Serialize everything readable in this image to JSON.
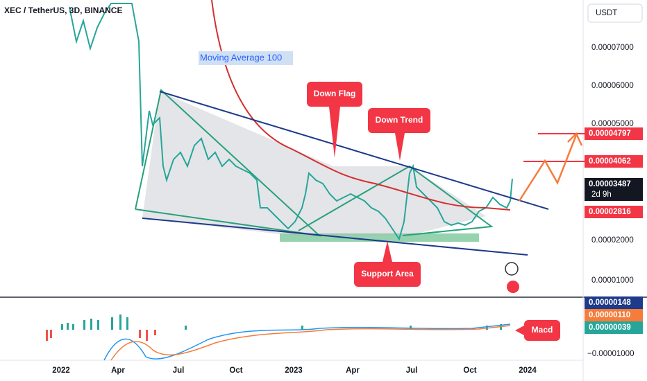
{
  "header": {
    "symbol": "XEC / TetherUS, 3D, BINANCE",
    "currency": "USDT"
  },
  "annotations": {
    "moving_average": "Moving Average 100",
    "down_flag": "Down Flag",
    "down_trend": "Down Trend",
    "support_area": "Support Area",
    "macd": "Macd"
  },
  "price_axis": [
    "0.00007000",
    "0.00006000",
    "0.00005000",
    "0.00002000",
    "0.00001000"
  ],
  "price_tags": [
    "0.00004797",
    "0.00004062",
    "0.00003487",
    "2d 9h",
    "0.00002816"
  ],
  "macd_axis": [
    "0.00000148",
    "0.00000110",
    "0.00000039",
    "−0.00001000"
  ],
  "time_axis": [
    "2022",
    "Apr",
    "Jul",
    "Oct",
    "2023",
    "Apr",
    "Jul",
    "Oct",
    "2024"
  ]
}
